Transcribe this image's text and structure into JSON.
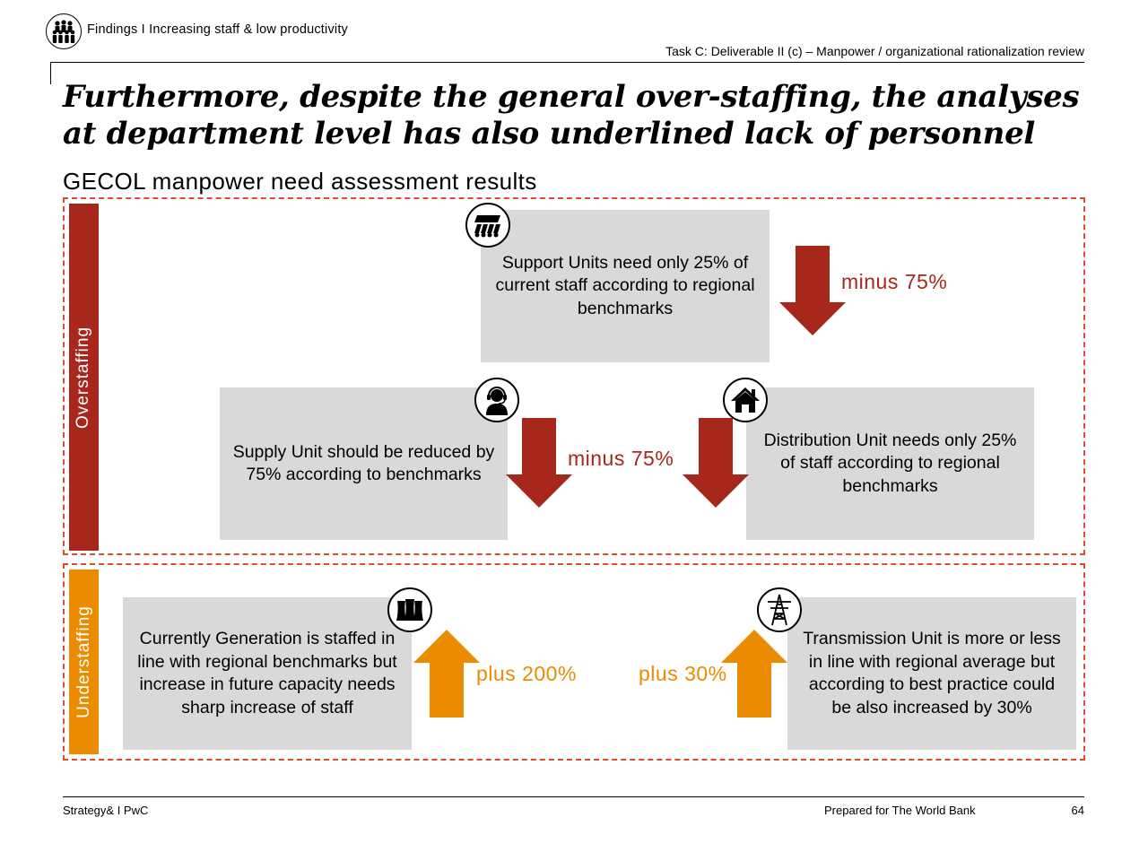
{
  "header": {
    "section_label": "Findings I Increasing staff & low productivity",
    "task_reference": "Task C: Deliverable II (c) – Manpower / organizational rationalization review"
  },
  "headline": "Furthermore, despite the general over-staffing, the analyses at department level has also underlined lack of personnel",
  "subtitle": "GECOL manpower need assessment results",
  "overstaffing": {
    "label": "Overstaffing",
    "color": "#a8271c",
    "support": {
      "icon": "conveyor-icon",
      "text": "Support Units need only 25% of current staff according to regional benchmarks",
      "change": "minus 75%"
    },
    "supply": {
      "icon": "headset-user-icon",
      "text": "Supply Unit should be reduced by 75% according to benchmarks",
      "change": "minus 75%"
    },
    "distribution": {
      "icon": "house-icon",
      "text": "Distribution Unit needs only 25% of staff according to regional benchmarks"
    }
  },
  "understaffing": {
    "label": "Understaffing",
    "color": "#eb8c00",
    "generation": {
      "icon": "cooling-towers-icon",
      "text": "Currently Generation is staffed in line with regional benchmarks but increase in future capacity needs sharp increase of staff",
      "change": "plus 200%"
    },
    "transmission": {
      "icon": "transmission-tower-icon",
      "text": "Transmission Unit is more or less in line with regional average but according to best practice could be also increased by 30%",
      "change": "plus 30%"
    }
  },
  "footer": {
    "left": "Strategy& I PwC",
    "center": "Prepared for The World Bank",
    "page_number": "64"
  }
}
